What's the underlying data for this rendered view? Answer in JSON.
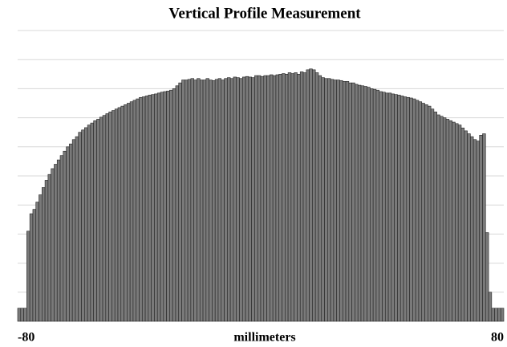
{
  "chart_data": {
    "type": "histogram",
    "title": "Vertical Profile Measurement",
    "x_label": "millimeters",
    "bins": [
      -80,
      -79,
      -78,
      -77,
      -76,
      -75,
      -74,
      -73,
      -72,
      -71,
      -70,
      -69,
      -68,
      -67,
      -66,
      -65,
      -64,
      -63,
      -62,
      -61,
      -60,
      -59,
      -58,
      -57,
      -56,
      -55,
      -54,
      -53,
      -52,
      -51,
      -50,
      -49,
      -48,
      -47,
      -46,
      -45,
      -44,
      -43,
      -42,
      -41,
      -40,
      -39,
      -38,
      -37,
      -36,
      -35,
      -34,
      -33,
      -32,
      -31,
      -30,
      -29,
      -28,
      -27,
      -26,
      -25,
      -24,
      -23,
      -22,
      -21,
      -20,
      -19,
      -18,
      -17,
      -16,
      -15,
      -14,
      -13,
      -12,
      -11,
      -10,
      -9,
      -8,
      -7,
      -6,
      -5,
      -4,
      -3,
      -2,
      -1,
      0,
      1,
      2,
      3,
      4,
      5,
      6,
      7,
      8,
      9,
      10,
      11,
      12,
      13,
      14,
      15,
      16,
      17,
      18,
      19,
      20,
      21,
      22,
      23,
      24,
      25,
      26,
      27,
      28,
      29,
      30,
      31,
      32,
      33,
      34,
      35,
      36,
      37,
      38,
      39,
      40,
      41,
      42,
      43,
      44,
      45,
      46,
      47,
      48,
      49,
      50,
      51,
      52,
      53,
      54,
      55,
      56,
      57,
      58,
      59,
      60,
      61,
      62,
      63,
      64,
      65,
      66,
      67,
      68,
      69,
      70,
      71,
      72,
      73,
      74,
      75,
      76,
      77,
      78,
      79,
      80
    ],
    "values": [
      0.45,
      0.45,
      0.45,
      3.1,
      3.7,
      3.85,
      4.1,
      4.35,
      4.6,
      4.85,
      5.05,
      5.25,
      5.4,
      5.55,
      5.7,
      5.85,
      6.0,
      6.1,
      6.25,
      6.35,
      6.5,
      6.58,
      6.66,
      6.75,
      6.82,
      6.9,
      6.95,
      7.02,
      7.08,
      7.14,
      7.2,
      7.25,
      7.3,
      7.35,
      7.4,
      7.45,
      7.5,
      7.55,
      7.6,
      7.65,
      7.7,
      7.72,
      7.75,
      7.78,
      7.8,
      7.82,
      7.85,
      7.88,
      7.9,
      7.92,
      7.95,
      8.0,
      8.1,
      8.2,
      8.3,
      8.3,
      8.32,
      8.35,
      8.3,
      8.35,
      8.3,
      8.3,
      8.35,
      8.3,
      8.28,
      8.32,
      8.35,
      8.3,
      8.35,
      8.38,
      8.35,
      8.4,
      8.38,
      8.35,
      8.4,
      8.42,
      8.4,
      8.38,
      8.45,
      8.45,
      8.42,
      8.45,
      8.45,
      8.48,
      8.45,
      8.48,
      8.5,
      8.52,
      8.5,
      8.55,
      8.52,
      8.55,
      8.5,
      8.58,
      8.55,
      8.65,
      8.68,
      8.65,
      8.55,
      8.45,
      8.38,
      8.35,
      8.35,
      8.32,
      8.3,
      8.3,
      8.28,
      8.25,
      8.25,
      8.2,
      8.2,
      8.15,
      8.12,
      8.1,
      8.08,
      8.05,
      8.0,
      7.98,
      7.95,
      7.9,
      7.88,
      7.85,
      7.85,
      7.82,
      7.8,
      7.78,
      7.75,
      7.72,
      7.7,
      7.68,
      7.65,
      7.6,
      7.55,
      7.5,
      7.45,
      7.4,
      7.3,
      7.2,
      7.1,
      7.05,
      7.0,
      6.95,
      6.9,
      6.85,
      6.8,
      6.75,
      6.65,
      6.55,
      6.45,
      6.35,
      6.25,
      6.2,
      6.4,
      6.45,
      3.05,
      1.0,
      0.45,
      0.45,
      0.45,
      0.45
    ],
    "color": "#7a7a7a",
    "xlim": [
      -80,
      80
    ],
    "xticks": [
      -80,
      80
    ],
    "ylim": [
      0,
      10
    ],
    "yticks": [
      1,
      2,
      3,
      4,
      5,
      6,
      7,
      8,
      9,
      10
    ],
    "grid": true
  }
}
